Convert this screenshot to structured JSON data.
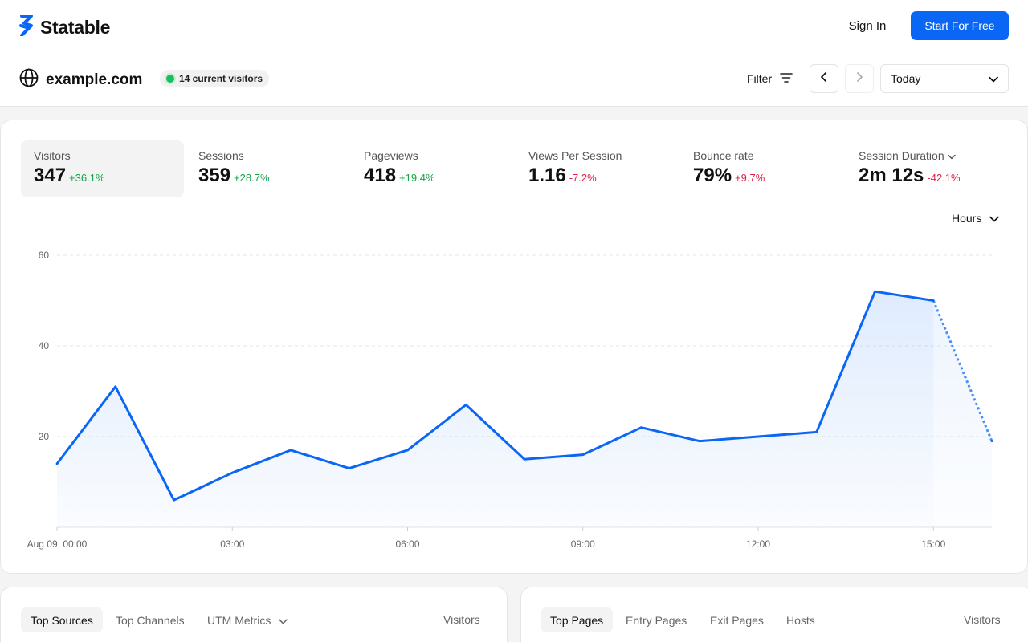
{
  "brand": {
    "name": "Statable",
    "accent": "#0a66f5"
  },
  "header": {
    "sign_in": "Sign In",
    "cta": "Start For Free"
  },
  "site": {
    "domain": "example.com",
    "live_visitors": "14 current visitors"
  },
  "controls": {
    "filter": "Filter",
    "date_range": "Today",
    "granularity": "Hours"
  },
  "metrics": [
    {
      "label": "Visitors",
      "value": "347",
      "delta": "+36.1%",
      "trend": "up"
    },
    {
      "label": "Sessions",
      "value": "359",
      "delta": "+28.7%",
      "trend": "up"
    },
    {
      "label": "Pageviews",
      "value": "418",
      "delta": "+19.4%",
      "trend": "up"
    },
    {
      "label": "Views Per Session",
      "value": "1.16",
      "delta": "-7.2%",
      "trend": "down"
    },
    {
      "label": "Bounce rate",
      "value": "79%",
      "delta": "+9.7%",
      "trend": "down"
    },
    {
      "label": "Session Duration",
      "value": "2m 12s",
      "delta": "-42.1%",
      "trend": "down"
    }
  ],
  "chart_data": {
    "type": "area",
    "series": [
      {
        "values": [
          14,
          31,
          6,
          12,
          17,
          13,
          17,
          27,
          15,
          16,
          22,
          19,
          20,
          21,
          52,
          50,
          19
        ]
      }
    ],
    "x": [
      0,
      1,
      2,
      3,
      4,
      5,
      6,
      7,
      8,
      9,
      10,
      11,
      12,
      13,
      14,
      15,
      16
    ],
    "x_tick_labels": [
      {
        "hour": 0,
        "label": "Aug 09, 00:00"
      },
      {
        "hour": 3,
        "label": "03:00"
      },
      {
        "hour": 6,
        "label": "06:00"
      },
      {
        "hour": 9,
        "label": "09:00"
      },
      {
        "hour": 12,
        "label": "12:00"
      },
      {
        "hour": 15,
        "label": "15:00"
      }
    ],
    "y_ticks": [
      20,
      40,
      60
    ],
    "ylim": [
      0,
      60
    ],
    "grid": true,
    "incomplete_from_hour": 15,
    "line_color": "#0a66f5"
  },
  "sources_panel": {
    "tabs": [
      "Top Sources",
      "Top Channels",
      "UTM Metrics"
    ],
    "column": "Visitors"
  },
  "pages_panel": {
    "tabs": [
      "Top Pages",
      "Entry Pages",
      "Exit Pages",
      "Hosts"
    ],
    "column": "Visitors"
  }
}
